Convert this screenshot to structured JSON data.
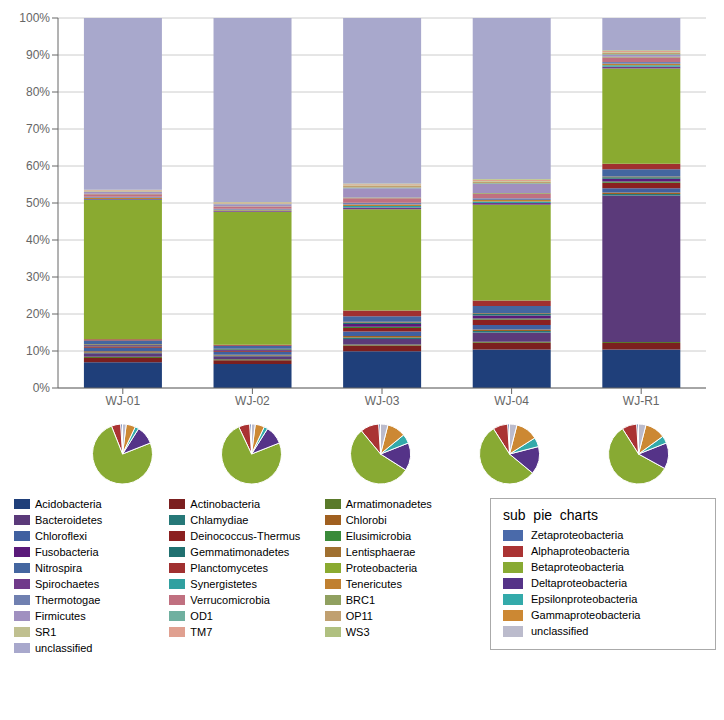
{
  "chart_data": [
    {
      "type": "bar",
      "stacked": true,
      "grid": true,
      "legend": "bottom",
      "categories": [
        "WJ-01",
        "WJ-02",
        "WJ-03",
        "WJ-04",
        "WJ-R1"
      ],
      "ylim": [
        0,
        1
      ],
      "yticks": [
        {
          "value": 0,
          "label": "0%"
        },
        {
          "value": 0.1,
          "label": "10%"
        },
        {
          "value": 0.2,
          "label": "20%"
        },
        {
          "value": 0.3,
          "label": "30%"
        },
        {
          "value": 0.4,
          "label": "40%"
        },
        {
          "value": 0.5,
          "label": "50%"
        },
        {
          "value": 0.6,
          "label": "60%"
        },
        {
          "value": 0.7,
          "label": "70%"
        },
        {
          "value": 0.8,
          "label": "80%"
        },
        {
          "value": 0.9,
          "label": "90%"
        },
        {
          "value": 1,
          "label": "100%"
        }
      ],
      "series": [
        {
          "name": "Acidobacteria",
          "color": "#1F3F7A",
          "values": [
            0.069307,
            0.064935,
            0.099602,
            0.104374,
            0.103858
          ]
        },
        {
          "name": "Actinobacteria",
          "color": "#7B1F1F",
          "values": [
            0.011881,
            0.00999,
            0.01494,
            0.017893,
            0.017804
          ]
        },
        {
          "name": "Armatimonadetes",
          "color": "#5A7A2A",
          "values": [
            0.00297,
            0.002997,
            0.002988,
            0.002982,
            0.002967
          ]
        },
        {
          "name": "Bacteroidetes",
          "color": "#5B3A7A",
          "values": [
            0.009901,
            0.007992,
            0.01494,
            0.024851,
            0.395648
          ]
        },
        {
          "name": "Chlamydiae",
          "color": "#267878",
          "values": [
            0.00198,
            0.001998,
            0.003984,
            0.003976,
            0.003956
          ]
        },
        {
          "name": "Chlorobi",
          "color": "#A06020",
          "values": [
            0.00297,
            0.001998,
            0.003984,
            0.003976,
            0.003956
          ]
        },
        {
          "name": "Chloroflexi",
          "color": "#4060A0",
          "values": [
            0.009901,
            0.007992,
            0.011952,
            0.011928,
            0.011869
          ]
        },
        {
          "name": "Deinococcus-Thermus",
          "color": "#8B2020",
          "values": [
            0.00297,
            0.001998,
            0.00996,
            0.014911,
            0.014837
          ]
        },
        {
          "name": "Elusimicrobia",
          "color": "#3A8A3A",
          "values": [
            0.00099,
            0.000999,
            0.002988,
            0.002982,
            0.002967
          ]
        },
        {
          "name": "Fusobacteria",
          "color": "#5A1A7A",
          "values": [
            0.00297,
            0.001998,
            0.007968,
            0.007952,
            0.007913
          ]
        },
        {
          "name": "Gemmatimonadetes",
          "color": "#207070",
          "values": [
            0.00198,
            0.001998,
            0.003984,
            0.003976,
            0.003956
          ]
        },
        {
          "name": "Lentisphaerae",
          "color": "#A07030",
          "values": [
            0.00099,
            0.000999,
            0.001992,
            0.001988,
            0.001978
          ]
        },
        {
          "name": "Nitrospira",
          "color": "#4466A0",
          "values": [
            0.009901,
            0.007992,
            0.01494,
            0.019881,
            0.019782
          ]
        },
        {
          "name": "Planctomycetes",
          "color": "#A03030",
          "values": [
            0.00297,
            0.002997,
            0.01494,
            0.014911,
            0.014837
          ]
        },
        {
          "name": "Proteobacteria",
          "color": "#8AAA30",
          "values": [
            0.376238,
            0.35964,
            0.273904,
            0.258449,
            0.257171
          ]
        },
        {
          "name": "Spirochaetes",
          "color": "#703A8A",
          "values": [
            0.00198,
            0.001998,
            0.00498,
            0.00497,
            0.004946
          ]
        },
        {
          "name": "Synergistetes",
          "color": "#30A0A0",
          "values": [
            0.00099,
            0.000999,
            0.003984,
            0.003976,
            0.003956
          ]
        },
        {
          "name": "Tenericutes",
          "color": "#C08030",
          "values": [
            0.00297,
            0.001998,
            0.003984,
            0.003976,
            0.003956
          ]
        },
        {
          "name": "Thermotogae",
          "color": "#7080B0",
          "values": [
            0.00297,
            0.002997,
            0.00498,
            0.00497,
            0.004946
          ]
        },
        {
          "name": "Verrucomicrobia",
          "color": "#C07080",
          "values": [
            0.006931,
            0.005994,
            0.011952,
            0.011928,
            0.011869
          ]
        },
        {
          "name": "BRC1",
          "color": "#90A060",
          "values": [
            0.00099,
            0.000999,
            0.001992,
            0.001988,
            0.001978
          ]
        },
        {
          "name": "Firmicutes",
          "color": "#A090C0",
          "values": [
            0.00495,
            0.004995,
            0.0249,
            0.024851,
            0.004946
          ]
        },
        {
          "name": "OD1",
          "color": "#70B0A0",
          "values": [
            0.00099,
            0.000999,
            0.001992,
            0.001988,
            0.001978
          ]
        },
        {
          "name": "OP11",
          "color": "#C0A070",
          "values": [
            0.00099,
            0.000999,
            0.003984,
            0.003976,
            0.003956
          ]
        },
        {
          "name": "SR1",
          "color": "#C0C090",
          "values": [
            0.00099,
            0.000999,
            0.001992,
            0.001988,
            0.001978
          ]
        },
        {
          "name": "TM7",
          "color": "#E0A090",
          "values": [
            0.00198,
            0.001998,
            0.002988,
            0.002982,
            0.002967
          ]
        },
        {
          "name": "WS3",
          "color": "#B0C080",
          "values": [
            0.00099,
            0.000999,
            0.001992,
            0.001988,
            0.001978
          ]
        },
        {
          "name": "unclassified",
          "color": "#A8A8CC",
          "values": [
            0.464356,
            0.497502,
            0.447211,
            0.435388,
            0.087043
          ]
        }
      ]
    },
    {
      "type": "pie",
      "title": "sub  pie  charts",
      "legend": "right",
      "categories": [
        "Zetaproteobacteria",
        "Alphaproteobacteria",
        "Betaproteobacteria",
        "Deltaproteobacteria",
        "Epsilonproteobacteria",
        "Gammaproteobacteria",
        "unclassified"
      ],
      "colors": [
        "#4A6AAA",
        "#AA3333",
        "#88AA33",
        "#553388",
        "#33AAAA",
        "#CC8833",
        "#BBBBCC"
      ],
      "series": [
        {
          "name": "WJ-01",
          "values": [
            1.0,
            5.0,
            75.0,
            10.0,
            2.0,
            5.0,
            2.0
          ]
        },
        {
          "name": "WJ-02",
          "values": [
            1.0,
            6.0,
            74.0,
            10.0,
            2.0,
            5.0,
            2.0
          ]
        },
        {
          "name": "WJ-03",
          "values": [
            1.0,
            10.0,
            55.0,
            15.0,
            5.0,
            10.0,
            4.0
          ]
        },
        {
          "name": "WJ-04",
          "values": [
            1.0,
            8.0,
            55.0,
            15.0,
            5.0,
            12.0,
            4.0
          ]
        },
        {
          "name": "WJ-R1",
          "values": [
            1.0,
            8.0,
            58.0,
            14.0,
            4.0,
            11.0,
            4.0
          ]
        }
      ]
    }
  ]
}
